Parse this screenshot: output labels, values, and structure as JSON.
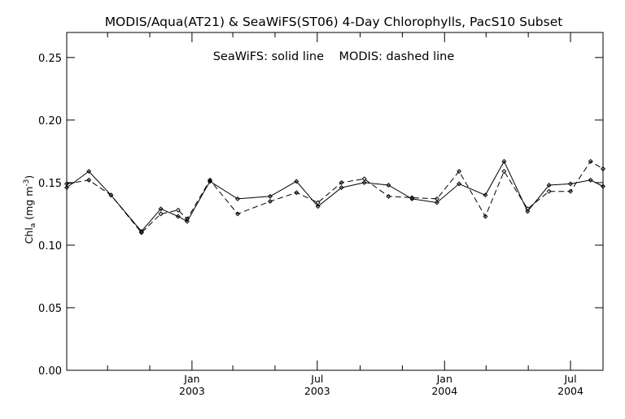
{
  "chart_data": {
    "type": "line",
    "title": "MODIS/Aqua(AT21) & SeaWiFS(ST06) 4-Day Chlorophylls, PacS10 Subset",
    "annotation": "SeaWiFS: solid line    MODIS: dashed line",
    "ylabel": "Chl",
    "ylabel_sub": "a",
    "ylabel_unit": " (mg m",
    "ylabel_sup": "-3",
    "ylabel_close": ")",
    "ylim": [
      0.0,
      0.27
    ],
    "yticks": [
      "0.00",
      "0.05",
      "0.10",
      "0.15",
      "0.20",
      "0.25"
    ],
    "ytick_values": [
      0.0,
      0.05,
      0.1,
      0.15,
      0.2,
      0.25
    ],
    "xlim": [
      "2002-07-04",
      "2004-08-17"
    ],
    "xticks": [
      {
        "date": "2003-01-01",
        "month": "Jan",
        "year": "2003"
      },
      {
        "date": "2003-07-01",
        "month": "Jul",
        "year": "2003"
      },
      {
        "date": "2004-01-01",
        "month": "Jan",
        "year": "2004"
      },
      {
        "date": "2004-07-01",
        "month": "Jul",
        "year": "2004"
      }
    ],
    "minor_xticks": [
      "2002-09-01",
      "2002-11-01",
      "2003-03-01",
      "2003-05-01",
      "2003-09-01",
      "2003-11-01",
      "2004-03-01",
      "2004-05-01"
    ],
    "grid": false,
    "series": [
      {
        "name": "SeaWiFS",
        "style": "solid",
        "x": [
          "2002-07-04",
          "2002-08-05",
          "2002-09-06",
          "2002-10-20",
          "2002-11-17",
          "2002-12-12",
          "2002-12-25",
          "2003-01-27",
          "2003-03-08",
          "2003-04-24",
          "2003-06-01",
          "2003-07-02",
          "2003-08-05",
          "2003-09-07",
          "2003-10-12",
          "2003-11-15",
          "2003-12-21",
          "2004-01-22",
          "2004-02-29",
          "2004-03-27",
          "2004-04-30",
          "2004-05-31",
          "2004-07-01",
          "2004-07-30",
          "2004-08-17"
        ],
        "y": [
          0.146,
          0.159,
          0.14,
          0.111,
          0.129,
          0.123,
          0.119,
          0.151,
          0.137,
          0.139,
          0.151,
          0.131,
          0.146,
          0.15,
          0.148,
          0.137,
          0.134,
          0.149,
          0.14,
          0.167,
          0.127,
          0.148,
          0.149,
          0.152,
          0.147
        ]
      },
      {
        "name": "MODIS",
        "style": "dashed",
        "x": [
          "2002-07-04",
          "2002-08-05",
          "2002-09-06",
          "2002-10-20",
          "2002-11-17",
          "2002-12-12",
          "2002-12-25",
          "2003-01-27",
          "2003-03-08",
          "2003-04-24",
          "2003-06-01",
          "2003-07-02",
          "2003-08-05",
          "2003-09-07",
          "2003-10-12",
          "2003-11-15",
          "2003-12-21",
          "2004-01-22",
          "2004-02-29",
          "2004-03-27",
          "2004-04-30",
          "2004-05-31",
          "2004-07-01",
          "2004-07-30",
          "2004-08-17"
        ],
        "y": [
          0.149,
          0.152,
          0.14,
          0.11,
          0.125,
          0.128,
          0.121,
          0.152,
          0.125,
          0.135,
          0.142,
          0.134,
          0.15,
          0.153,
          0.139,
          0.138,
          0.137,
          0.159,
          0.123,
          0.159,
          0.129,
          0.143,
          0.143,
          0.167,
          0.161
        ]
      }
    ]
  }
}
